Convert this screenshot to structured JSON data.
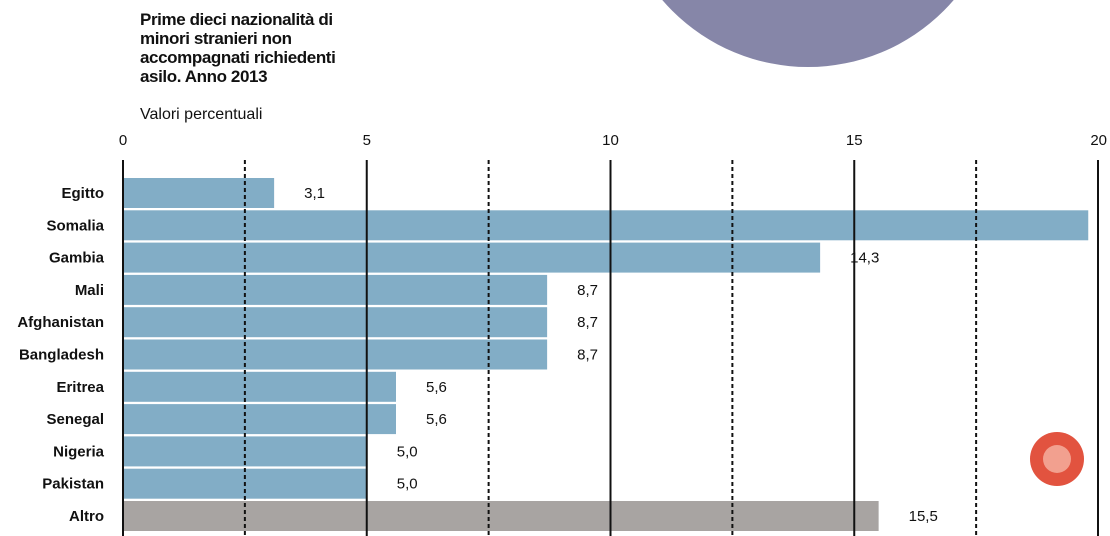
{
  "chart_data": {
    "type": "hbar",
    "title": "Prime dieci nazionalità di minori stranieri non accompagnati richiedenti asilo. Anno 2013",
    "subtitle": "Valori percentuali",
    "categories": [
      "Egitto",
      "Somalia",
      "Gambia",
      "Mali",
      "Afghanistan",
      "Bangladesh",
      "Eritrea",
      "Senegal",
      "Nigeria",
      "Pakistan",
      "Altro"
    ],
    "values": [
      3.1,
      19.8,
      14.3,
      8.7,
      8.7,
      8.7,
      5.6,
      5.6,
      5.0,
      5.0,
      15.5
    ],
    "value_labels": [
      "3,1",
      null,
      "14,3",
      "8,7",
      "8,7",
      "8,7",
      "5,6",
      "5,6",
      "5,0",
      "5,0",
      "15,5"
    ],
    "colors": [
      "#82adc6",
      "#82adc6",
      "#82adc6",
      "#82adc6",
      "#82adc6",
      "#82adc6",
      "#82adc6",
      "#82adc6",
      "#82adc6",
      "#82adc6",
      "#a8a4a2"
    ],
    "xlim": [
      0,
      20
    ],
    "xticks": [
      0,
      5,
      10,
      15,
      20
    ],
    "minor_gridlines": [
      2.5,
      7.5,
      12.5,
      17.5
    ],
    "grid": true
  }
}
